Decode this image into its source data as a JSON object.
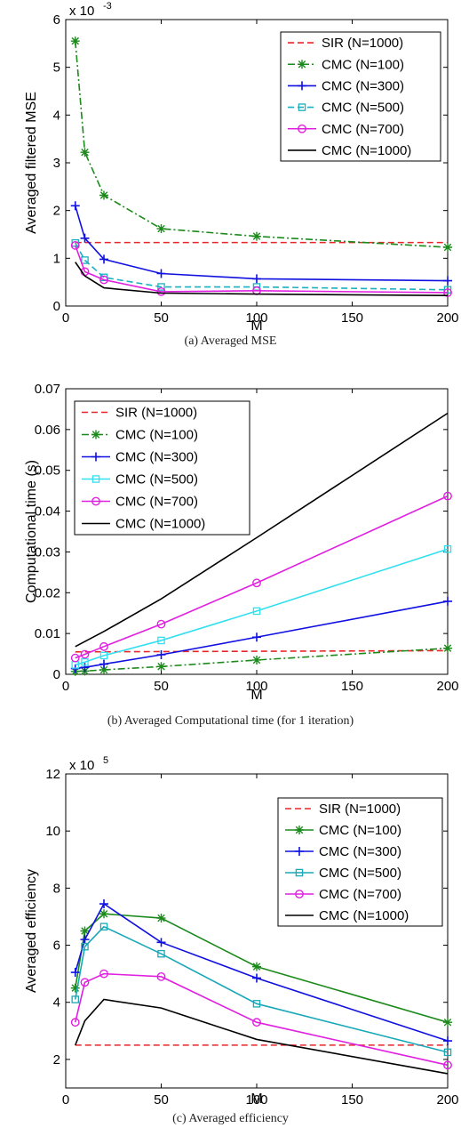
{
  "chart_data": [
    {
      "type": "line",
      "caption": "(a) Averaged MSE",
      "xlabel": "M",
      "ylabel": "Averaged filtered MSE",
      "exponent_label": "x 10",
      "exponent_power": "-3",
      "xlim": [
        0,
        200
      ],
      "ylim": [
        0,
        6
      ],
      "xticks": [
        0,
        50,
        100,
        150,
        200
      ],
      "yticks": [
        0,
        1,
        2,
        3,
        4,
        5,
        6
      ],
      "legend_position": "top-right",
      "series": [
        {
          "name": "SIR (N=1000)",
          "color": "#e8262a",
          "dash": "dashed",
          "marker": "none",
          "x": [
            5,
            200
          ],
          "y": [
            1.33,
            1.33
          ]
        },
        {
          "name": "CMC (N=100)",
          "color": "#1b8a1b",
          "dash": "dashdot",
          "marker": "star",
          "x": [
            5,
            10,
            20,
            50,
            100,
            200
          ],
          "y": [
            5.55,
            3.22,
            2.32,
            1.62,
            1.46,
            1.23
          ]
        },
        {
          "name": "CMC (N=300)",
          "color": "#1010e0",
          "dash": "solid",
          "marker": "plus",
          "x": [
            5,
            10,
            20,
            50,
            100,
            200
          ],
          "y": [
            2.1,
            1.42,
            0.98,
            0.68,
            0.57,
            0.53
          ]
        },
        {
          "name": "CMC (N=500)",
          "color": "#19b0c0",
          "dash": "dashed",
          "marker": "square",
          "x": [
            5,
            10,
            20,
            50,
            100,
            200
          ],
          "y": [
            1.32,
            0.96,
            0.6,
            0.4,
            0.4,
            0.34
          ]
        },
        {
          "name": "CMC (N=700)",
          "color": "#e020e0",
          "dash": "solid",
          "marker": "circle",
          "x": [
            5,
            10,
            20,
            50,
            100,
            200
          ],
          "y": [
            1.27,
            0.72,
            0.55,
            0.3,
            0.32,
            0.28
          ]
        },
        {
          "name": "CMC (N=1000)",
          "color": "#000000",
          "dash": "solid",
          "marker": "none",
          "x": [
            5,
            10,
            20,
            50,
            100,
            200
          ],
          "y": [
            0.92,
            0.63,
            0.38,
            0.27,
            0.25,
            0.22
          ]
        }
      ]
    },
    {
      "type": "line",
      "caption": "(b) Averaged Computational time (for 1 iteration)",
      "xlabel": "M",
      "ylabel": "Computational time (s)",
      "xlim": [
        0,
        200
      ],
      "ylim": [
        0,
        0.07
      ],
      "xticks": [
        0,
        50,
        100,
        150,
        200
      ],
      "yticks": [
        0,
        0.01,
        0.02,
        0.03,
        0.04,
        0.05,
        0.06,
        0.07
      ],
      "legend_position": "top-left",
      "series": [
        {
          "name": "SIR (N=1000)",
          "color": "#e8262a",
          "dash": "dashed",
          "marker": "none",
          "x": [
            5,
            200
          ],
          "y": [
            0.0055,
            0.0058
          ]
        },
        {
          "name": "CMC (N=100)",
          "color": "#1b8a1b",
          "dash": "dashdot",
          "marker": "star",
          "x": [
            5,
            10,
            20,
            50,
            100,
            200
          ],
          "y": [
            0.0007,
            0.0008,
            0.0011,
            0.0019,
            0.0035,
            0.0064
          ]
        },
        {
          "name": "CMC (N=300)",
          "color": "#1010e0",
          "dash": "solid",
          "marker": "plus",
          "x": [
            5,
            10,
            20,
            50,
            100,
            200
          ],
          "y": [
            0.0014,
            0.0017,
            0.0025,
            0.0048,
            0.0091,
            0.0179
          ]
        },
        {
          "name": "CMC (N=500)",
          "color": "#33e0f0",
          "dash": "solid",
          "marker": "square",
          "x": [
            5,
            10,
            20,
            50,
            100,
            200
          ],
          "y": [
            0.0023,
            0.003,
            0.0046,
            0.0083,
            0.0155,
            0.0307
          ]
        },
        {
          "name": "CMC (N=700)",
          "color": "#e020e0",
          "dash": "solid",
          "marker": "circle",
          "x": [
            5,
            10,
            20,
            50,
            100,
            200
          ],
          "y": [
            0.004,
            0.0049,
            0.0068,
            0.0123,
            0.0224,
            0.0437
          ]
        },
        {
          "name": "CMC (N=1000)",
          "color": "#000000",
          "dash": "solid",
          "marker": "none",
          "x": [
            5,
            20,
            50,
            100,
            200
          ],
          "y": [
            0.0068,
            0.0105,
            0.0185,
            0.0335,
            0.064
          ]
        }
      ]
    },
    {
      "type": "line",
      "caption": "(c) Averaged efficiency",
      "xlabel": "M",
      "ylabel": "Averaged efficiency",
      "exponent_label": "x 10",
      "exponent_power": "5",
      "xlim": [
        0,
        200
      ],
      "ylim": [
        1,
        12
      ],
      "xticks": [
        0,
        50,
        100,
        150,
        200
      ],
      "yticks": [
        2,
        4,
        6,
        8,
        10,
        12
      ],
      "legend_position": "top-right",
      "series": [
        {
          "name": "SIR (N=1000)",
          "color": "#e8262a",
          "dash": "dashed",
          "marker": "none",
          "x": [
            5,
            200
          ],
          "y": [
            2.5,
            2.5
          ]
        },
        {
          "name": "CMC (N=100)",
          "color": "#1b8a1b",
          "dash": "solid",
          "marker": "star",
          "x": [
            5,
            10,
            20,
            50,
            100,
            200
          ],
          "y": [
            4.5,
            6.5,
            7.1,
            6.95,
            5.25,
            3.3
          ]
        },
        {
          "name": "CMC (N=300)",
          "color": "#1010e0",
          "dash": "solid",
          "marker": "plus",
          "x": [
            5,
            10,
            20,
            50,
            100,
            200
          ],
          "y": [
            5.05,
            6.2,
            7.45,
            6.1,
            4.85,
            2.65
          ]
        },
        {
          "name": "CMC (N=500)",
          "color": "#19a8b8",
          "dash": "solid",
          "marker": "square",
          "x": [
            5,
            10,
            20,
            50,
            100,
            200
          ],
          "y": [
            4.1,
            5.95,
            6.65,
            5.7,
            3.95,
            2.25
          ]
        },
        {
          "name": "CMC (N=700)",
          "color": "#e020e0",
          "dash": "solid",
          "marker": "circle",
          "x": [
            5,
            10,
            20,
            50,
            100,
            200
          ],
          "y": [
            3.3,
            4.7,
            5.0,
            4.9,
            3.3,
            1.8
          ]
        },
        {
          "name": "CMC (N=1000)",
          "color": "#000000",
          "dash": "solid",
          "marker": "none",
          "x": [
            5,
            10,
            20,
            50,
            100,
            200
          ],
          "y": [
            2.5,
            3.35,
            4.1,
            3.8,
            2.7,
            1.5
          ]
        }
      ]
    }
  ]
}
